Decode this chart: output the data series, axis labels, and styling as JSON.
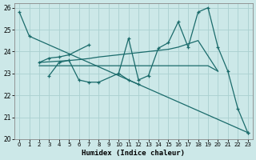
{
  "xlabel": "Humidex (Indice chaleur)",
  "xlim": [
    -0.5,
    23.5
  ],
  "ylim": [
    20,
    26.2
  ],
  "xticks": [
    0,
    1,
    2,
    3,
    4,
    5,
    6,
    7,
    8,
    9,
    10,
    11,
    12,
    13,
    14,
    15,
    16,
    17,
    18,
    19,
    20,
    21,
    22,
    23
  ],
  "yticks": [
    20,
    21,
    22,
    23,
    24,
    25,
    26
  ],
  "background_color": "#cce8e8",
  "grid_color": "#aad0d0",
  "line_color": "#1a6b6b",
  "line1": {
    "x": [
      0,
      1,
      23
    ],
    "y": [
      25.8,
      24.7,
      20.3
    ]
  },
  "line2": {
    "x": [
      2,
      3,
      4,
      5,
      7
    ],
    "y": [
      23.5,
      23.7,
      23.75,
      23.85,
      24.3
    ]
  },
  "line3": {
    "x": [
      3,
      4,
      5,
      6,
      7,
      8,
      10,
      11,
      12
    ],
    "y": [
      22.9,
      23.5,
      23.6,
      22.7,
      22.6,
      22.6,
      23.0,
      22.7,
      22.5
    ]
  },
  "line4_x": [
    2,
    3,
    4,
    5,
    6,
    7,
    8,
    9,
    10,
    11,
    12,
    13,
    14,
    15,
    16,
    17,
    18,
    20
  ],
  "line4_y": [
    23.5,
    23.53,
    23.56,
    23.59,
    23.63,
    23.68,
    23.75,
    23.8,
    23.85,
    23.9,
    23.95,
    24.0,
    24.05,
    24.1,
    24.2,
    24.35,
    24.5,
    23.1
  ],
  "line5_x": [
    10,
    11,
    12,
    13,
    14,
    15,
    16,
    17,
    18,
    19,
    20,
    21,
    22,
    23
  ],
  "line5_y": [
    23.0,
    24.6,
    22.7,
    22.9,
    24.15,
    24.4,
    25.35,
    24.2,
    25.8,
    26.0,
    24.2,
    23.1,
    21.4,
    20.3
  ],
  "line6_x": [
    2,
    3,
    4,
    5,
    6,
    7,
    8,
    9,
    10,
    11,
    12,
    13,
    14,
    15,
    16,
    17,
    18,
    19,
    20
  ],
  "line6_y": [
    23.35,
    23.35,
    23.35,
    23.35,
    23.35,
    23.35,
    23.35,
    23.35,
    23.35,
    23.35,
    23.35,
    23.35,
    23.35,
    23.35,
    23.35,
    23.35,
    23.35,
    23.35,
    23.1
  ]
}
